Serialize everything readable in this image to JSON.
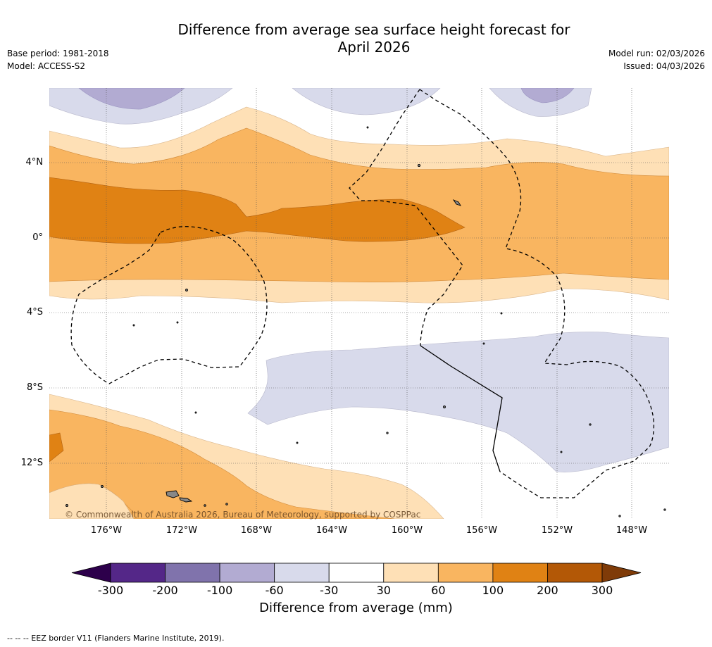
{
  "title_line1": "Difference from average sea surface height forecast for",
  "title_line2": "April 2026",
  "meta_left": {
    "base_period": "Base period: 1981-2018",
    "model": "Model: ACCESS-S2"
  },
  "meta_right": {
    "model_run": "Model run: 02/03/2026",
    "issued": "Issued: 04/03/2026"
  },
  "lat_labels": [
    "4°N",
    "0°",
    "4°S",
    "8°S",
    "12°S"
  ],
  "lon_labels": [
    "176°W",
    "172°W",
    "168°W",
    "164°W",
    "160°W",
    "156°W",
    "152°W",
    "148°W"
  ],
  "copyright": "© Commonwealth of Australia 2026, Bureau of Meteorology, supported by COSPPac",
  "colorbar": {
    "ticks": [
      "-300",
      "-200",
      "-100",
      "-60",
      "-30",
      "30",
      "60",
      "100",
      "200",
      "300"
    ],
    "colors": [
      "#2d004b",
      "#542788",
      "#8073ac",
      "#b2abd2",
      "#d8daeb",
      "#ffffff",
      "#fee0b6",
      "#f9b560",
      "#e08214",
      "#b35806",
      "#7f3b08"
    ],
    "label": "Difference from average (mm)"
  },
  "eez_note": "-- -- -- EEZ border V11 (Flanders Marine Institute, 2019).",
  "colors": {
    "neg30": "#d8daeb",
    "neg60": "#b2abd2",
    "pos30": "#fee0b6",
    "pos60": "#f9b560",
    "pos100": "#e08214"
  }
}
